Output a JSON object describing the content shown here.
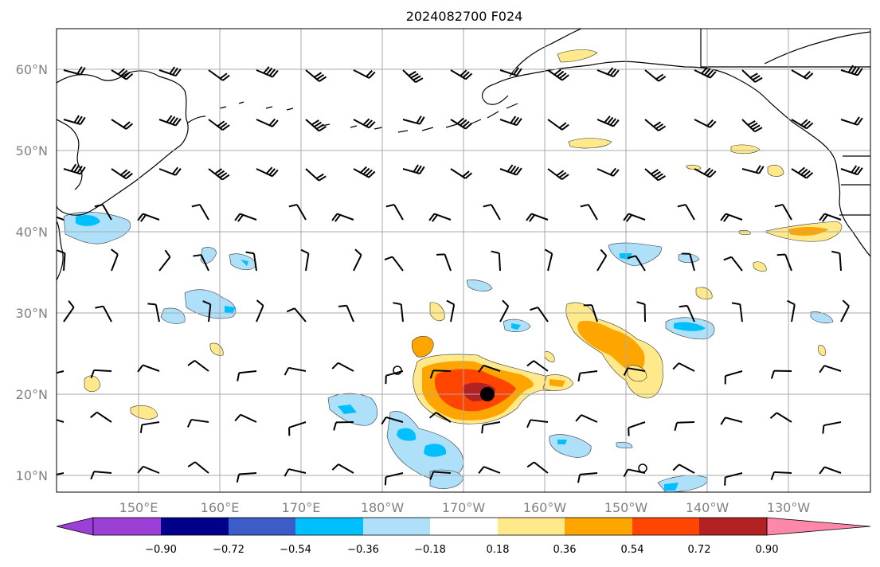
{
  "map": {
    "title": "2024082700 F024",
    "latitude_labels": [
      "60°N",
      "50°N",
      "40°N",
      "30°N",
      "20°N",
      "10°N"
    ],
    "longitude_labels": [
      "150°E",
      "160°E",
      "170°E",
      "180°W",
      "170°W",
      "160°W",
      "150°W",
      "140°W",
      "130°W"
    ],
    "gridlines": true,
    "coastline_color": "#000000",
    "gridline_color": "#aaaaaa",
    "marker": {
      "name": "storm-center",
      "lat": 20,
      "lon": -168
    }
  },
  "colorbar": {
    "tick_labels": [
      "−0.90",
      "−0.72",
      "−0.54",
      "−0.36",
      "−0.18",
      "0.18",
      "0.36",
      "0.54",
      "0.72",
      "0.90"
    ],
    "colors": [
      "#9b3fd6",
      "#00008b",
      "#3b5cc9",
      "#00bfff",
      "#aee0fa",
      "#ffffff",
      "#ffe98a",
      "#ffa500",
      "#ff4500",
      "#b22222",
      "#ff88aa"
    ],
    "extend": "both"
  }
}
